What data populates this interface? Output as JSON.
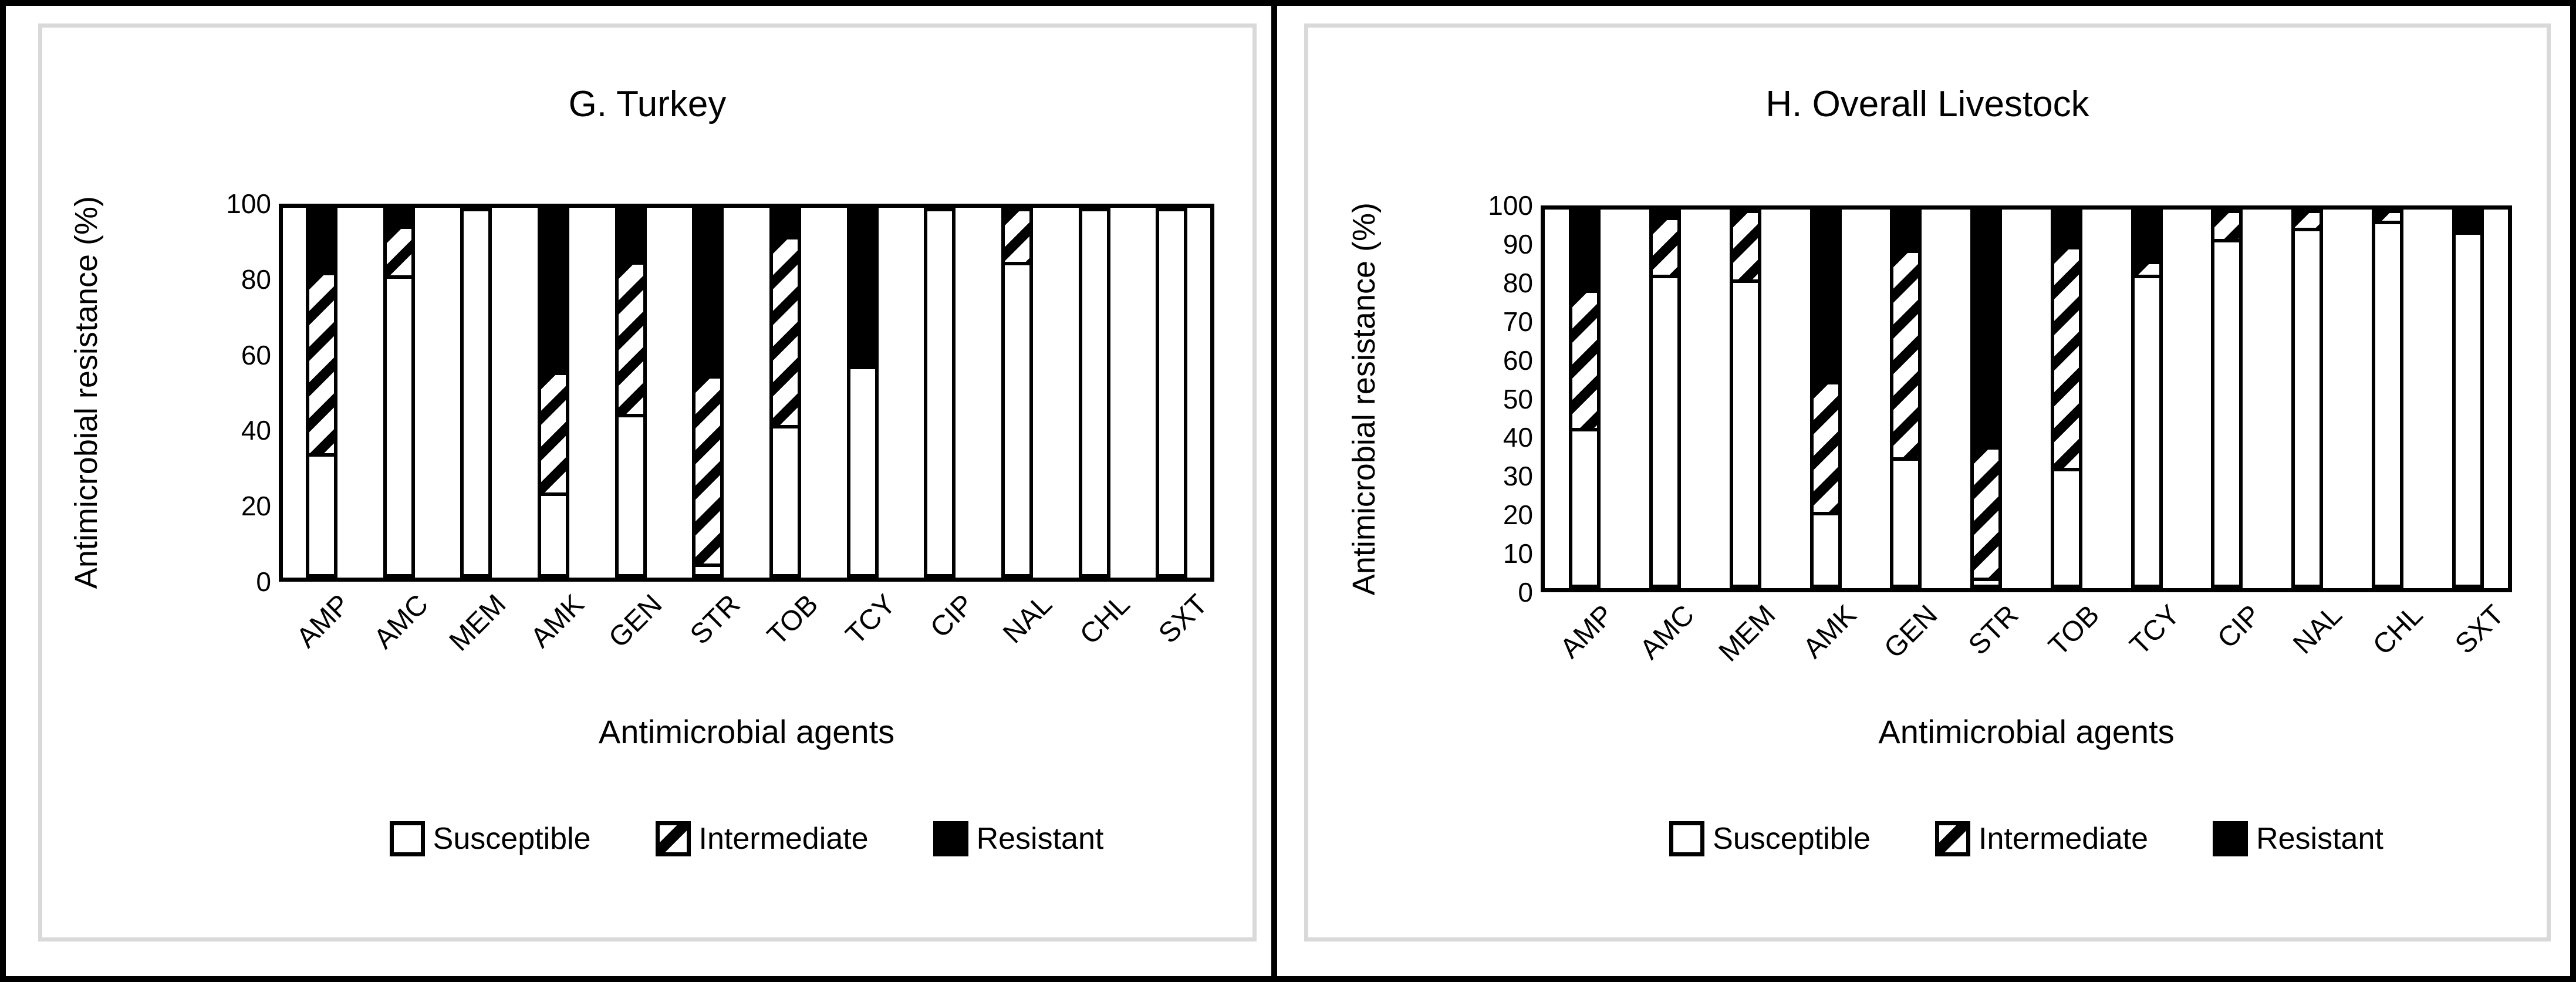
{
  "page": {
    "background": "#ffffff",
    "outer_border_color": "#000000",
    "panel_frame_color": "#d9d9d9",
    "bar_border_color": "#000000",
    "fill_susceptible": "#ffffff",
    "fill_intermediate": "hatched-diagonal-black-on-white",
    "fill_resistant": "#000000"
  },
  "legend": {
    "items": [
      {
        "label": "Susceptible",
        "swatch": "white"
      },
      {
        "label": "Intermediate",
        "swatch": "hatch"
      },
      {
        "label": "Resistant",
        "swatch": "black"
      }
    ]
  },
  "chart_data": [
    {
      "type": "bar",
      "stacked": true,
      "title": "G. Turkey",
      "xlabel": "Antimicrobial agents",
      "ylabel": "Antimicrobial resistance (%)",
      "ylim": [
        0,
        100
      ],
      "yticks": [
        0,
        20,
        40,
        60,
        80,
        100
      ],
      "grid": false,
      "legend_position": "bottom",
      "categories": [
        "AMP",
        "AMC",
        "MEM",
        "AMK",
        "GEN",
        "STR",
        "TOB",
        "TCY",
        "CIP",
        "NAL",
        "CHL",
        "SXT"
      ],
      "series": [
        {
          "name": "Susceptible",
          "values": [
            33,
            83,
            100,
            22,
            44,
            2,
            41,
            57,
            100,
            86,
            100,
            100
          ]
        },
        {
          "name": "Intermediate",
          "values": [
            50,
            13,
            0,
            33,
            42,
            52,
            52,
            0,
            0,
            14,
            0,
            0
          ]
        },
        {
          "name": "Resistant",
          "values": [
            17,
            4,
            0,
            45,
            14,
            46,
            7,
            43,
            0,
            0,
            0,
            0
          ]
        }
      ]
    },
    {
      "type": "bar",
      "stacked": true,
      "title": "H. Overall Livestock",
      "xlabel": "Antimicrobial agents",
      "ylabel": "Antimicrobial resistance (%)",
      "ylim": [
        0,
        100
      ],
      "yticks": [
        0,
        10,
        20,
        30,
        40,
        50,
        60,
        70,
        80,
        90,
        100
      ],
      "grid": false,
      "legend_position": "bottom",
      "categories": [
        "AMP",
        "AMC",
        "MEM",
        "AMK",
        "GEN",
        "STR",
        "TOB",
        "TCY",
        "CIP",
        "NAL",
        "CHL",
        "SXT"
      ],
      "series": [
        {
          "name": "Susceptible",
          "values": [
            42,
            84,
            82,
            19,
            34,
            1,
            31,
            84,
            93,
            96,
            98,
            95
          ]
        },
        {
          "name": "Intermediate",
          "values": [
            37,
            15,
            18,
            35,
            56,
            35,
            60,
            3,
            7,
            4,
            2,
            0
          ]
        },
        {
          "name": "Resistant",
          "values": [
            21,
            1,
            0,
            46,
            10,
            64,
            9,
            13,
            0,
            0,
            0,
            5
          ]
        }
      ]
    }
  ]
}
